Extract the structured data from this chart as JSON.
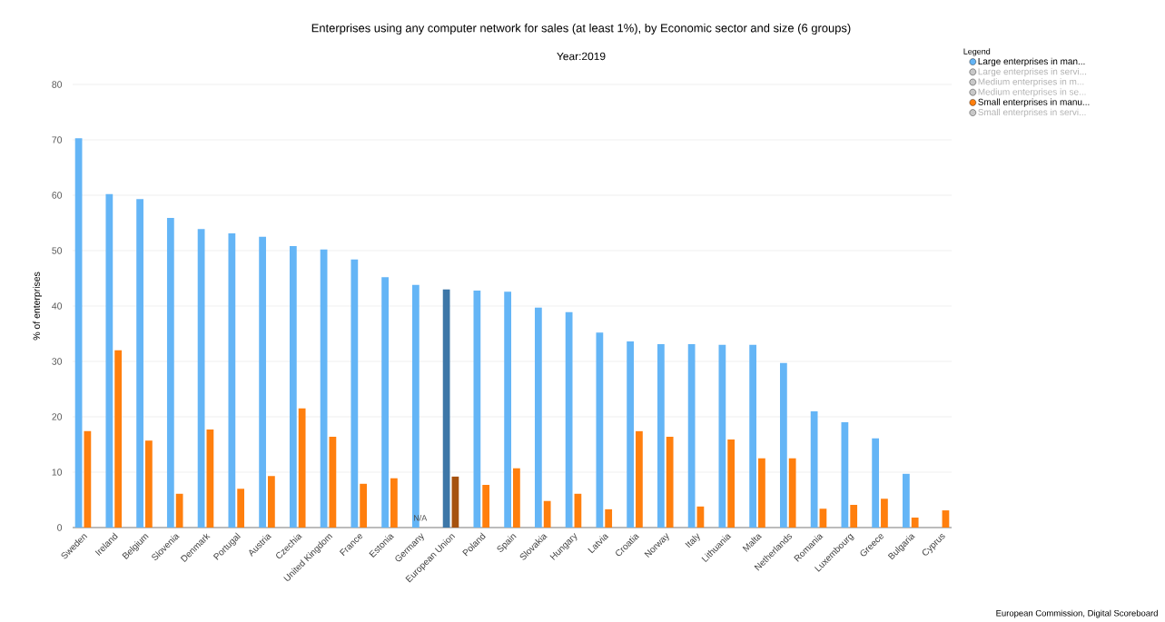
{
  "chart_data": {
    "type": "bar",
    "title": "Enterprises using any computer network for sales (at least 1%), by Economic sector and size (6 groups)",
    "subtitle": "Year:2019",
    "ylabel": "% of enterprises",
    "legend_title": "Legend",
    "legend": "right",
    "grid": "y",
    "categories": [
      "Sweden",
      "Ireland",
      "Belgium",
      "Slovenia",
      "Denmark",
      "Portugal",
      "Austria",
      "Czechia",
      "United Kingdom",
      "France",
      "Estonia",
      "Germany",
      "European Union",
      "Poland",
      "Spain",
      "Slovakia",
      "Hungary",
      "Latvia",
      "Croatia",
      "Norway",
      "Italy",
      "Lithuania",
      "Malta",
      "Netherlands",
      "Romania",
      "Luxembourg",
      "Greece",
      "Bulgaria",
      "Cyprus"
    ],
    "ylim": [
      0,
      80
    ],
    "yticks": [
      0,
      10,
      20,
      30,
      40,
      50,
      60,
      70,
      80
    ],
    "series": [
      {
        "name": "Large enterprises in man...",
        "color": "#64b5f6",
        "colors": [
          "#64b5f6",
          "#64b5f6",
          "#64b5f6",
          "#64b5f6",
          "#64b5f6",
          "#64b5f6",
          "#64b5f6",
          "#64b5f6",
          "#64b5f6",
          "#64b5f6",
          "#64b5f6",
          "#64b5f6",
          "#3d77a8",
          "#64b5f6",
          "#64b5f6",
          "#64b5f6",
          "#64b5f6",
          "#64b5f6",
          "#64b5f6",
          "#64b5f6",
          "#64b5f6",
          "#64b5f6",
          "#64b5f6",
          "#64b5f6",
          "#64b5f6",
          "#64b5f6",
          "#64b5f6",
          "#64b5f6",
          "#64b5f6"
        ],
        "values": [
          70.3,
          60.2,
          59.3,
          55.9,
          53.9,
          53.1,
          52.5,
          50.8,
          50.2,
          48.4,
          45.2,
          43.8,
          43.0,
          42.8,
          42.6,
          39.7,
          38.9,
          35.2,
          33.6,
          33.1,
          33.1,
          33.0,
          33.0,
          29.7,
          21.0,
          19.0,
          16.1,
          9.7,
          null
        ]
      },
      {
        "name": "Large enterprises in servi...",
        "color": "#c8c8c8",
        "values": [
          null,
          null,
          null,
          null,
          null,
          null,
          null,
          null,
          null,
          null,
          null,
          null,
          null,
          null,
          null,
          null,
          null,
          null,
          null,
          null,
          null,
          null,
          null,
          null,
          null,
          null,
          null,
          null,
          null
        ]
      },
      {
        "name": "Medium enterprises in m...",
        "color": "#c8c8c8",
        "values": [
          null,
          null,
          null,
          null,
          null,
          null,
          null,
          null,
          null,
          null,
          null,
          null,
          null,
          null,
          null,
          null,
          null,
          null,
          null,
          null,
          null,
          null,
          null,
          null,
          null,
          null,
          null,
          null,
          null
        ]
      },
      {
        "name": "Medium enterprises in se...",
        "color": "#c8c8c8",
        "values": [
          null,
          null,
          null,
          null,
          null,
          null,
          null,
          null,
          null,
          null,
          null,
          null,
          null,
          null,
          null,
          null,
          null,
          null,
          null,
          null,
          null,
          null,
          null,
          null,
          null,
          null,
          null,
          null,
          null
        ]
      },
      {
        "name": "Small enterprises in manu...",
        "color": "#ff7f0e",
        "colors": [
          "#ff7f0e",
          "#ff7f0e",
          "#ff7f0e",
          "#ff7f0e",
          "#ff7f0e",
          "#ff7f0e",
          "#ff7f0e",
          "#ff7f0e",
          "#ff7f0e",
          "#ff7f0e",
          "#ff7f0e",
          "#ff7f0e",
          "#a6520f",
          "#ff7f0e",
          "#ff7f0e",
          "#ff7f0e",
          "#ff7f0e",
          "#ff7f0e",
          "#ff7f0e",
          "#ff7f0e",
          "#ff7f0e",
          "#ff7f0e",
          "#ff7f0e",
          "#ff7f0e",
          "#ff7f0e",
          "#ff7f0e",
          "#ff7f0e",
          "#ff7f0e",
          "#ff7f0e"
        ],
        "values": [
          17.4,
          32.0,
          15.7,
          6.1,
          17.7,
          7.0,
          9.3,
          21.5,
          16.4,
          7.9,
          8.9,
          null,
          9.2,
          7.7,
          10.7,
          4.8,
          6.1,
          3.3,
          17.4,
          16.4,
          3.8,
          15.9,
          12.5,
          12.5,
          3.4,
          4.1,
          5.2,
          1.8,
          3.1
        ]
      },
      {
        "name": "Small enterprises in servi...",
        "color": "#c8c8c8",
        "values": [
          null,
          null,
          null,
          null,
          null,
          null,
          null,
          null,
          null,
          null,
          null,
          null,
          null,
          null,
          null,
          null,
          null,
          null,
          null,
          null,
          null,
          null,
          null,
          null,
          null,
          null,
          null,
          null,
          null
        ]
      }
    ],
    "annotations": [
      {
        "text": "N/A",
        "x": "Germany",
        "y": 0
      },
      "European Commission, Digital Scoreboard"
    ]
  }
}
